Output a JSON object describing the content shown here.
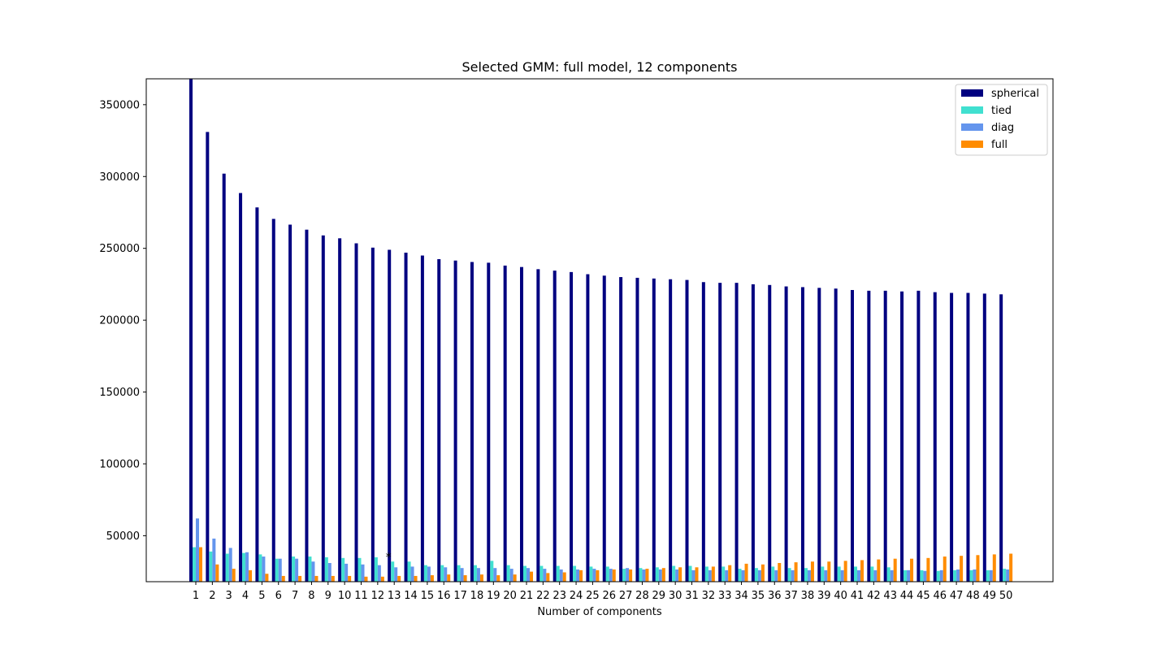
{
  "chart_data": {
    "type": "bar",
    "title": "Selected GMM: full model, 12 components",
    "xlabel": "Number of components",
    "ylabel": "",
    "ylim": [
      18000,
      368000
    ],
    "yticks": [
      50000,
      100000,
      150000,
      200000,
      250000,
      300000,
      350000
    ],
    "ytick_labels": [
      "50000",
      "100000",
      "150000",
      "200000",
      "250000",
      "300000",
      "350000"
    ],
    "categories": [
      "1",
      "2",
      "3",
      "4",
      "5",
      "6",
      "7",
      "8",
      "9",
      "10",
      "11",
      "12",
      "13",
      "14",
      "15",
      "16",
      "17",
      "18",
      "19",
      "20",
      "21",
      "22",
      "23",
      "24",
      "25",
      "26",
      "27",
      "28",
      "29",
      "30",
      "31",
      "32",
      "33",
      "34",
      "35",
      "36",
      "37",
      "38",
      "39",
      "40",
      "41",
      "42",
      "43",
      "44",
      "45",
      "46",
      "47",
      "48",
      "49",
      "50"
    ],
    "legend_position": "top-right",
    "grid": false,
    "annotation": {
      "text": "*",
      "x": 12,
      "series": "full",
      "y": 37500
    },
    "series": [
      {
        "name": "spherical",
        "color": "#000080",
        "values": [
          369000,
          331000,
          302000,
          288500,
          278500,
          270500,
          266500,
          263000,
          259000,
          257000,
          253500,
          250500,
          249000,
          247000,
          245000,
          242500,
          241500,
          240500,
          240000,
          238000,
          237000,
          235500,
          234500,
          233500,
          232000,
          231000,
          230000,
          229500,
          229000,
          228500,
          228000,
          226500,
          226000,
          226000,
          225000,
          224500,
          223500,
          223000,
          222500,
          222000,
          221000,
          220500,
          220500,
          220000,
          220500,
          219500,
          219000,
          219000,
          218500,
          218000
        ]
      },
      {
        "name": "tied",
        "color": "#40E0D0",
        "values": [
          42000,
          39000,
          37500,
          38000,
          37000,
          34000,
          35500,
          35500,
          35000,
          34500,
          34500,
          35000,
          32000,
          32000,
          29500,
          29500,
          29500,
          29500,
          32500,
          29500,
          29000,
          29000,
          29000,
          29000,
          28500,
          28500,
          27000,
          27500,
          28000,
          29000,
          29000,
          28500,
          28500,
          27000,
          27500,
          28500,
          27500,
          27500,
          28500,
          28500,
          28500,
          28500,
          28000,
          26000,
          26000,
          25500,
          26000,
          26000,
          26000,
          27000
        ]
      },
      {
        "name": "diag",
        "color": "#6495ED",
        "values": [
          62000,
          48000,
          41500,
          38500,
          35500,
          34000,
          34000,
          32000,
          31000,
          30500,
          30000,
          29500,
          28000,
          28500,
          28500,
          28000,
          27500,
          27500,
          27500,
          27000,
          27500,
          27000,
          26500,
          26500,
          27000,
          27000,
          27500,
          26500,
          26500,
          26500,
          26000,
          26000,
          26000,
          26000,
          26000,
          26000,
          26000,
          26000,
          26000,
          26000,
          26000,
          26000,
          26000,
          26000,
          25500,
          26000,
          26500,
          26500,
          26000,
          26500
        ]
      },
      {
        "name": "full",
        "color": "#FF8C00",
        "values": [
          42000,
          30000,
          27000,
          26000,
          23500,
          22000,
          22000,
          22000,
          22000,
          22000,
          21500,
          21500,
          22000,
          22000,
          22500,
          23000,
          22500,
          23000,
          22500,
          23000,
          25000,
          24000,
          24500,
          26000,
          26000,
          26500,
          26500,
          27000,
          27500,
          28000,
          28000,
          28500,
          29500,
          30500,
          30000,
          31000,
          31500,
          32000,
          32000,
          32500,
          33000,
          33500,
          34000,
          34000,
          34500,
          35500,
          36000,
          36500,
          37000,
          37500
        ]
      }
    ]
  }
}
